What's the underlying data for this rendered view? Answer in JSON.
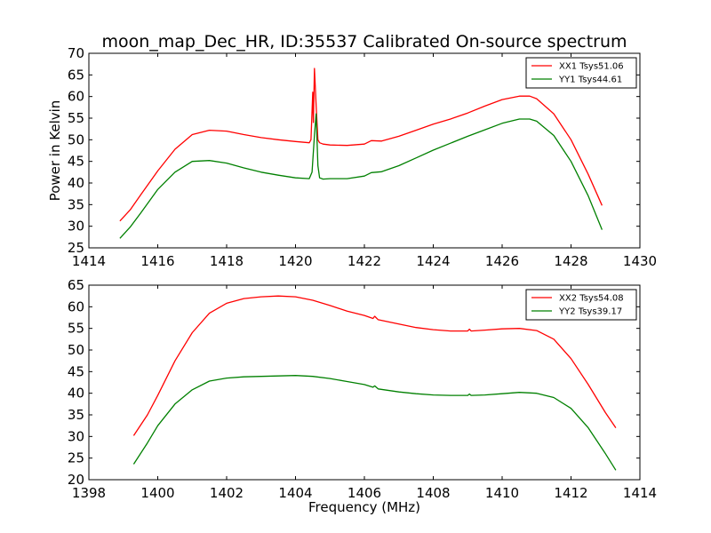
{
  "chart_data": [
    {
      "type": "line",
      "title": "moon_map_Dec_HR, ID:35537 Calibrated On-source spectrum",
      "xlabel": "",
      "ylabel": "Power in Kelvin",
      "xlim": [
        1414,
        1430
      ],
      "ylim": [
        25,
        70
      ],
      "xticks": [
        1414,
        1416,
        1418,
        1420,
        1422,
        1424,
        1426,
        1428,
        1430
      ],
      "yticks": [
        25,
        30,
        35,
        40,
        45,
        50,
        55,
        60,
        65,
        70
      ],
      "legend_position": "top-right",
      "grid": false,
      "series": [
        {
          "name": "XX1 Tsys51.06",
          "color": "#ff0000",
          "x": [
            1414.9,
            1415.2,
            1415.5,
            1416.0,
            1416.5,
            1417.0,
            1417.5,
            1418.0,
            1418.5,
            1419.0,
            1419.5,
            1420.0,
            1420.4,
            1420.45,
            1420.5,
            1420.52,
            1420.55,
            1420.6,
            1420.65,
            1420.7,
            1420.8,
            1421.0,
            1421.5,
            1422.0,
            1422.2,
            1422.5,
            1423.0,
            1423.5,
            1424.0,
            1424.5,
            1425.0,
            1425.5,
            1426.0,
            1426.5,
            1426.8,
            1427.0,
            1427.5,
            1428.0,
            1428.5,
            1428.9
          ],
          "y": [
            31.2,
            33.8,
            37.2,
            42.8,
            47.8,
            51.2,
            52.2,
            52.0,
            51.2,
            50.5,
            50.0,
            49.6,
            49.3,
            50.0,
            61.0,
            54.0,
            66.5,
            58.0,
            50.0,
            49.3,
            49.0,
            48.8,
            48.7,
            49.0,
            49.8,
            49.7,
            50.8,
            52.2,
            53.6,
            54.8,
            56.2,
            57.8,
            59.3,
            60.1,
            60.1,
            59.5,
            56.0,
            50.0,
            42.0,
            34.8
          ]
        },
        {
          "name": "YY1 Tsys44.61",
          "color": "#008000",
          "x": [
            1414.9,
            1415.2,
            1415.5,
            1416.0,
            1416.5,
            1417.0,
            1417.5,
            1418.0,
            1418.5,
            1419.0,
            1419.5,
            1420.0,
            1420.4,
            1420.48,
            1420.55,
            1420.6,
            1420.65,
            1420.7,
            1420.8,
            1421.0,
            1421.5,
            1422.0,
            1422.2,
            1422.5,
            1423.0,
            1423.5,
            1424.0,
            1424.5,
            1425.0,
            1425.5,
            1426.0,
            1426.5,
            1426.8,
            1427.0,
            1427.5,
            1428.0,
            1428.5,
            1428.9
          ],
          "y": [
            27.2,
            29.8,
            33.0,
            38.5,
            42.5,
            45.0,
            45.2,
            44.6,
            43.5,
            42.5,
            41.8,
            41.2,
            41.0,
            42.5,
            51.0,
            56.0,
            44.0,
            41.2,
            40.9,
            41.0,
            41.0,
            41.6,
            42.4,
            42.6,
            44.0,
            45.8,
            47.6,
            49.2,
            50.8,
            52.3,
            53.8,
            54.8,
            54.8,
            54.3,
            51.0,
            45.0,
            37.0,
            29.2
          ]
        }
      ]
    },
    {
      "type": "line",
      "title": "",
      "xlabel": "Frequency (MHz)",
      "ylabel": "",
      "xlim": [
        1398,
        1414
      ],
      "ylim": [
        20,
        65
      ],
      "xticks": [
        1398,
        1400,
        1402,
        1404,
        1406,
        1408,
        1410,
        1412,
        1414
      ],
      "yticks": [
        20,
        25,
        30,
        35,
        40,
        45,
        50,
        55,
        60,
        65
      ],
      "legend_position": "top-right",
      "grid": false,
      "series": [
        {
          "name": "XX2 Tsys54.08",
          "color": "#ff0000",
          "x": [
            1399.3,
            1399.7,
            1400.0,
            1400.5,
            1401.0,
            1401.5,
            1402.0,
            1402.5,
            1403.0,
            1403.5,
            1404.0,
            1404.5,
            1405.0,
            1405.5,
            1406.0,
            1406.25,
            1406.3,
            1406.4,
            1407.0,
            1407.5,
            1408.0,
            1408.5,
            1409.0,
            1409.05,
            1409.1,
            1409.5,
            1410.0,
            1410.5,
            1411.0,
            1411.5,
            1412.0,
            1412.5,
            1413.0,
            1413.3
          ],
          "y": [
            30.2,
            35.0,
            39.5,
            47.5,
            54.0,
            58.5,
            60.8,
            61.9,
            62.3,
            62.5,
            62.3,
            61.5,
            60.3,
            59.0,
            58.0,
            57.3,
            57.8,
            57.0,
            56.0,
            55.2,
            54.7,
            54.4,
            54.4,
            54.8,
            54.4,
            54.6,
            54.9,
            55.0,
            54.5,
            52.5,
            48.0,
            42.0,
            35.5,
            32.0
          ]
        },
        {
          "name": "YY2 Tsys39.17",
          "color": "#008000",
          "x": [
            1399.3,
            1399.7,
            1400.0,
            1400.5,
            1401.0,
            1401.5,
            1402.0,
            1402.5,
            1403.0,
            1403.5,
            1404.0,
            1404.5,
            1405.0,
            1405.5,
            1406.0,
            1406.25,
            1406.3,
            1406.4,
            1407.0,
            1407.5,
            1408.0,
            1408.5,
            1409.0,
            1409.05,
            1409.1,
            1409.5,
            1410.0,
            1410.5,
            1411.0,
            1411.5,
            1412.0,
            1412.5,
            1413.0,
            1413.3
          ],
          "y": [
            23.6,
            28.5,
            32.5,
            37.5,
            40.8,
            42.8,
            43.5,
            43.8,
            43.9,
            44.0,
            44.1,
            43.9,
            43.4,
            42.7,
            42.0,
            41.4,
            41.7,
            41.0,
            40.3,
            39.9,
            39.6,
            39.5,
            39.5,
            39.8,
            39.5,
            39.6,
            39.9,
            40.2,
            40.0,
            39.0,
            36.5,
            32.0,
            26.0,
            22.2
          ]
        }
      ]
    }
  ]
}
